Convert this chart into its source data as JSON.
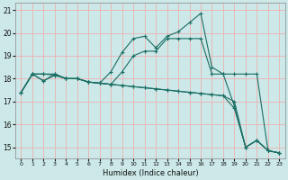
{
  "xlabel": "Humidex (Indice chaleur)",
  "bg_color": "#cce8e8",
  "grid_color": "#e8b8b8",
  "line_color": "#1a6e64",
  "ylim": [
    14.5,
    21.3
  ],
  "xlim": [
    -0.5,
    23.5
  ],
  "yticks": [
    15,
    16,
    17,
    18,
    19,
    20,
    21
  ],
  "xticks": [
    0,
    1,
    2,
    3,
    4,
    5,
    6,
    7,
    8,
    9,
    10,
    11,
    12,
    13,
    14,
    15,
    16,
    17,
    18,
    19,
    20,
    21,
    22,
    23
  ],
  "line1_x": [
    0,
    1,
    2,
    3,
    4,
    5,
    6,
    7,
    8,
    9,
    10,
    11,
    12,
    13,
    14,
    15,
    16,
    17,
    18,
    19,
    20,
    21,
    22,
    23
  ],
  "line1_y": [
    17.4,
    18.2,
    17.9,
    18.2,
    18.0,
    18.0,
    17.85,
    17.8,
    18.3,
    19.15,
    19.75,
    19.85,
    19.35,
    19.85,
    20.05,
    20.45,
    20.85,
    18.5,
    18.2,
    16.8,
    15.0,
    15.3,
    14.85,
    14.75
  ],
  "line2_x": [
    0,
    1,
    2,
    3,
    4,
    5,
    6,
    7,
    8,
    9,
    10,
    11,
    12,
    13,
    14,
    15,
    16,
    17,
    18,
    19,
    20,
    21,
    22,
    23
  ],
  "line2_y": [
    17.4,
    18.2,
    18.2,
    18.2,
    18.0,
    18.0,
    17.85,
    17.8,
    17.75,
    17.7,
    17.65,
    17.6,
    17.55,
    17.5,
    17.45,
    17.4,
    17.35,
    17.3,
    17.25,
    16.7,
    15.0,
    15.3,
    14.85,
    14.75
  ],
  "line3_x": [
    0,
    1,
    2,
    3,
    4,
    5,
    6,
    7,
    8,
    9,
    10,
    11,
    12,
    13,
    14,
    15,
    16,
    17,
    18,
    19,
    20,
    21,
    22,
    23
  ],
  "line3_y": [
    17.4,
    18.2,
    18.2,
    18.15,
    18.0,
    18.0,
    17.85,
    17.8,
    17.75,
    18.3,
    19.0,
    19.2,
    19.2,
    19.75,
    19.75,
    19.75,
    19.75,
    18.2,
    18.2,
    18.2,
    18.2,
    18.2,
    14.85,
    14.75
  ],
  "line4_x": [
    0,
    1,
    2,
    3,
    4,
    5,
    6,
    7,
    8,
    9,
    10,
    11,
    12,
    13,
    14,
    15,
    16,
    17,
    18,
    19,
    20,
    21,
    22,
    23
  ],
  "line4_y": [
    17.4,
    18.2,
    17.9,
    18.15,
    18.0,
    18.0,
    17.85,
    17.8,
    17.75,
    17.7,
    17.65,
    17.6,
    17.55,
    17.5,
    17.45,
    17.4,
    17.35,
    17.3,
    17.25,
    17.0,
    15.0,
    15.3,
    14.85,
    14.75
  ]
}
